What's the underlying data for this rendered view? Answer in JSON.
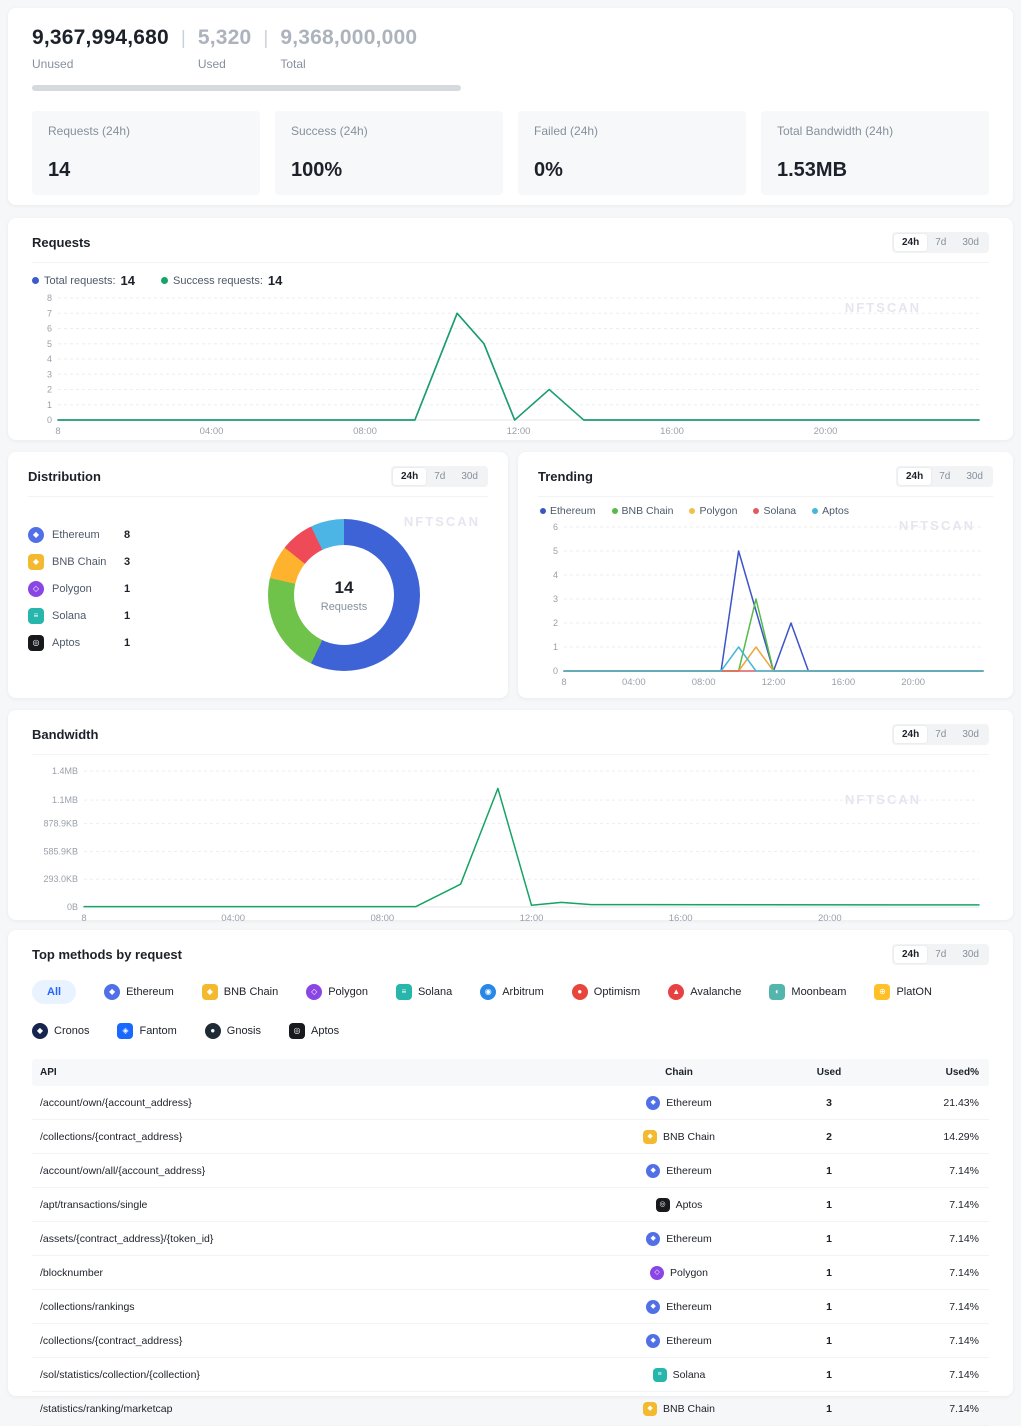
{
  "watermark": "NFTSCAN",
  "time_toggle": [
    "24h",
    "7d",
    "30d"
  ],
  "header": {
    "unused_value": "9,367,994,680",
    "unused_label": "Unused",
    "used_value": "5,320",
    "used_label": "Used",
    "total_value": "9,368,000,000",
    "total_label": "Total",
    "divider": "|"
  },
  "stat_cards": [
    {
      "label": "Requests (24h)",
      "value": "14"
    },
    {
      "label": "Success (24h)",
      "value": "100%"
    },
    {
      "label": "Failed (24h)",
      "value": "0%"
    },
    {
      "label": "Total Bandwidth (24h)",
      "value": "1.53MB"
    }
  ],
  "chains": {
    "Ethereum": {
      "color": "#5170e8",
      "glyph": "◆",
      "shape": "circle"
    },
    "BNB Chain": {
      "color": "#f3ba2f",
      "glyph": "◆",
      "shape": "square"
    },
    "Polygon": {
      "color": "#8a46e5",
      "glyph": "◇",
      "shape": "circle"
    },
    "Solana": {
      "color": "#27b6ab",
      "glyph": "≡",
      "shape": "square"
    },
    "Aptos": {
      "color": "#17191c",
      "glyph": "◎",
      "shape": "square"
    },
    "Arbitrum": {
      "color": "#2788e8",
      "glyph": "◉",
      "shape": "circle"
    },
    "Optimism": {
      "color": "#e8463c",
      "glyph": "●",
      "shape": "circle"
    },
    "Avalanche": {
      "color": "#e84142",
      "glyph": "▲",
      "shape": "circle"
    },
    "Moonbeam": {
      "color": "#54b4ae",
      "glyph": "◐",
      "shape": "square"
    },
    "PlatON": {
      "color": "#ffc028",
      "glyph": "⊕",
      "shape": "square"
    },
    "Cronos": {
      "color": "#16254f",
      "glyph": "◆",
      "shape": "circle"
    },
    "Fantom": {
      "color": "#1969ff",
      "glyph": "◈",
      "shape": "square"
    },
    "Gnosis": {
      "color": "#1f2a37",
      "glyph": "●",
      "shape": "circle"
    }
  },
  "requests_panel": {
    "title": "Requests",
    "legend": [
      {
        "label": "Total requests:",
        "value": "14",
        "color": "#3c5cc9"
      },
      {
        "label": "Success requests:",
        "value": "14",
        "color": "#16a364"
      }
    ]
  },
  "distribution_panel": {
    "title": "Distribution",
    "legend": [
      {
        "name": "Ethereum",
        "value": "8"
      },
      {
        "name": "BNB Chain",
        "value": "3"
      },
      {
        "name": "Polygon",
        "value": "1"
      },
      {
        "name": "Solana",
        "value": "1"
      },
      {
        "name": "Aptos",
        "value": "1"
      }
    ]
  },
  "trending_panel": {
    "title": "Trending",
    "legend": [
      {
        "name": "Ethereum",
        "color": "#3c55c6"
      },
      {
        "name": "BNB Chain",
        "color": "#57b94c"
      },
      {
        "name": "Polygon",
        "color": "#f0c04a"
      },
      {
        "name": "Solana",
        "color": "#e05c5c"
      },
      {
        "name": "Aptos",
        "color": "#45b8d8"
      }
    ]
  },
  "bandwidth_panel": {
    "title": "Bandwidth"
  },
  "methods_panel": {
    "title": "Top methods by request",
    "tabs": [
      "All",
      "Ethereum",
      "BNB Chain",
      "Polygon",
      "Solana",
      "Arbitrum",
      "Optimism",
      "Avalanche",
      "Moonbeam",
      "PlatON",
      "Cronos",
      "Fantom",
      "Gnosis",
      "Aptos"
    ],
    "active_tab": "All",
    "table": {
      "columns": [
        "API",
        "Chain",
        "Used",
        "Used%"
      ],
      "rows": [
        {
          "api": "/account/own/{account_address}",
          "chain": "Ethereum",
          "used": "3",
          "used_pct": "21.43%"
        },
        {
          "api": "/collections/{contract_address}",
          "chain": "BNB Chain",
          "used": "2",
          "used_pct": "14.29%"
        },
        {
          "api": "/account/own/all/{account_address}",
          "chain": "Ethereum",
          "used": "1",
          "used_pct": "7.14%"
        },
        {
          "api": "/apt/transactions/single",
          "chain": "Aptos",
          "used": "1",
          "used_pct": "7.14%"
        },
        {
          "api": "/assets/{contract_address}/{token_id}",
          "chain": "Ethereum",
          "used": "1",
          "used_pct": "7.14%"
        },
        {
          "api": "/blocknumber",
          "chain": "Polygon",
          "used": "1",
          "used_pct": "7.14%"
        },
        {
          "api": "/collections/rankings",
          "chain": "Ethereum",
          "used": "1",
          "used_pct": "7.14%"
        },
        {
          "api": "/collections/{contract_address}",
          "chain": "Ethereum",
          "used": "1",
          "used_pct": "7.14%"
        },
        {
          "api": "/sol/statistics/collection/{collection}",
          "chain": "Solana",
          "used": "1",
          "used_pct": "7.14%"
        },
        {
          "api": "/statistics/ranking/marketcap",
          "chain": "BNB Chain",
          "used": "1",
          "used_pct": "7.14%"
        }
      ]
    }
  },
  "chart_data": [
    {
      "id": "requests",
      "type": "line",
      "title": "Requests",
      "xlim": [
        0,
        24
      ],
      "ylim": [
        0,
        8
      ],
      "grid": true,
      "xticks": [
        {
          "v": 0,
          "label": "8"
        },
        {
          "v": 4,
          "label": "04:00"
        },
        {
          "v": 8,
          "label": "08:00"
        },
        {
          "v": 12,
          "label": "12:00"
        },
        {
          "v": 16,
          "label": "16:00"
        },
        {
          "v": 20,
          "label": "20:00"
        }
      ],
      "yticks": [
        0,
        1,
        2,
        3,
        4,
        5,
        6,
        7,
        8
      ],
      "series": [
        {
          "name": "Total requests",
          "color": "#3c5cc9",
          "points": [
            [
              0,
              0
            ],
            [
              9.3,
              0
            ],
            [
              10.4,
              7
            ],
            [
              11.1,
              5
            ],
            [
              11.9,
              0
            ],
            [
              12.8,
              2
            ],
            [
              13.7,
              0
            ],
            [
              24,
              0
            ]
          ]
        },
        {
          "name": "Success requests",
          "color": "#16a364",
          "points": [
            [
              0,
              0
            ],
            [
              9.3,
              0
            ],
            [
              10.4,
              7
            ],
            [
              11.1,
              5
            ],
            [
              11.9,
              0
            ],
            [
              12.8,
              2
            ],
            [
              13.7,
              0
            ],
            [
              24,
              0
            ]
          ]
        }
      ]
    },
    {
      "id": "distribution",
      "type": "pie",
      "title": "Distribution",
      "center_value": "14",
      "center_label": "Requests",
      "slices": [
        {
          "name": "Ethereum",
          "value": 8,
          "color": "#3e63d7"
        },
        {
          "name": "BNB Chain",
          "value": 3,
          "color": "#6fc24a"
        },
        {
          "name": "Polygon",
          "value": 1,
          "color": "#ffb22e"
        },
        {
          "name": "Solana",
          "value": 1,
          "color": "#ef4a57"
        },
        {
          "name": "Aptos",
          "value": 1,
          "color": "#4cb5e6"
        }
      ]
    },
    {
      "id": "trending",
      "type": "line",
      "title": "Trending",
      "xlim": [
        0,
        24
      ],
      "ylim": [
        0,
        6
      ],
      "grid": true,
      "xticks": [
        {
          "v": 0,
          "label": "8"
        },
        {
          "v": 4,
          "label": "04:00"
        },
        {
          "v": 8,
          "label": "08:00"
        },
        {
          "v": 12,
          "label": "12:00"
        },
        {
          "v": 16,
          "label": "16:00"
        },
        {
          "v": 20,
          "label": "20:00"
        }
      ],
      "yticks": [
        0,
        1,
        2,
        3,
        4,
        5,
        6
      ],
      "series": [
        {
          "name": "Ethereum",
          "color": "#3c55c6",
          "points": [
            [
              0,
              0
            ],
            [
              9,
              0
            ],
            [
              10,
              5
            ],
            [
              12,
              0
            ],
            [
              13,
              2
            ],
            [
              14,
              0
            ],
            [
              24,
              0
            ]
          ]
        },
        {
          "name": "BNB Chain",
          "color": "#57b94c",
          "points": [
            [
              0,
              0
            ],
            [
              10,
              0
            ],
            [
              11,
              3
            ],
            [
              12,
              0
            ],
            [
              24,
              0
            ]
          ]
        },
        {
          "name": "Polygon",
          "color": "#f0a73a",
          "points": [
            [
              0,
              0
            ],
            [
              10,
              0
            ],
            [
              11,
              1
            ],
            [
              12,
              0
            ],
            [
              24,
              0
            ]
          ]
        },
        {
          "name": "Solana",
          "color": "#e05c5c",
          "points": [
            [
              0,
              0
            ],
            [
              24,
              0
            ]
          ]
        },
        {
          "name": "Aptos",
          "color": "#45b8d8",
          "points": [
            [
              0,
              0
            ],
            [
              9,
              0
            ],
            [
              10,
              1
            ],
            [
              11,
              0
            ],
            [
              24,
              0
            ]
          ]
        }
      ]
    },
    {
      "id": "bandwidth",
      "type": "line",
      "title": "Bandwidth",
      "xlim": [
        0,
        24
      ],
      "ylim": [
        0,
        1433.6
      ],
      "grid": true,
      "xticks": [
        {
          "v": 0,
          "label": "8"
        },
        {
          "v": 4,
          "label": "04:00"
        },
        {
          "v": 8,
          "label": "08:00"
        },
        {
          "v": 12,
          "label": "12:00"
        },
        {
          "v": 16,
          "label": "16:00"
        },
        {
          "v": 20,
          "label": "20:00"
        }
      ],
      "yticks": [
        {
          "v": 0,
          "label": "0B"
        },
        {
          "v": 293,
          "label": "293.0KB"
        },
        {
          "v": 585.9,
          "label": "585.9KB"
        },
        {
          "v": 878.9,
          "label": "878.9KB"
        },
        {
          "v": 1126.4,
          "label": "1.1MB"
        },
        {
          "v": 1433.6,
          "label": "1.4MB"
        }
      ],
      "series": [
        {
          "name": "Bandwidth",
          "color": "#16a364",
          "points": [
            [
              0,
              4
            ],
            [
              8.9,
              4
            ],
            [
              10.1,
              240
            ],
            [
              11.1,
              1250
            ],
            [
              12.0,
              18
            ],
            [
              12.8,
              48
            ],
            [
              13.6,
              25
            ],
            [
              24,
              22
            ]
          ]
        }
      ]
    }
  ]
}
